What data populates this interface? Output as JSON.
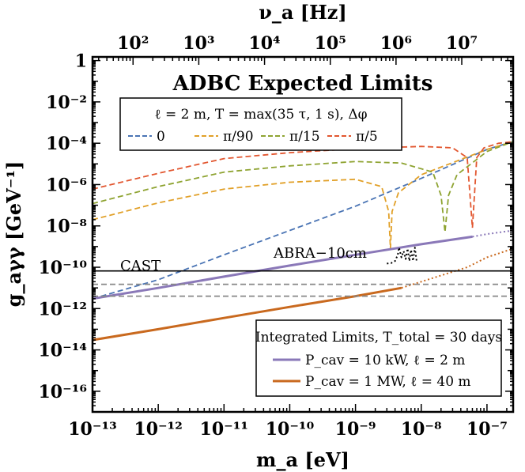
{
  "chart_data": {
    "type": "line",
    "title": "ADBC Expected Limits",
    "xlabel": "m_a [eV]",
    "ylabel": "g_aγγ [GeV⁻¹]",
    "top_xlabel": "ν_a [Hz]",
    "xscale": "log",
    "yscale": "log",
    "xlim": [
      1e-13,
      2.5e-07
    ],
    "ylim": [
      1e-17,
      1.5
    ],
    "x_ticks": [
      {
        "value": 1e-13,
        "label": "10⁻¹³"
      },
      {
        "value": 1e-12,
        "label": "10⁻¹²"
      },
      {
        "value": 1e-11,
        "label": "10⁻¹¹"
      },
      {
        "value": 1e-10,
        "label": "10⁻¹⁰"
      },
      {
        "value": 1e-09,
        "label": "10⁻⁹"
      },
      {
        "value": 1e-08,
        "label": "10⁻⁸"
      },
      {
        "value": 1e-07,
        "label": "10⁻⁷"
      }
    ],
    "y_ticks": [
      {
        "value": 1,
        "label": "1"
      },
      {
        "value": 0.01,
        "label": "10⁻²"
      },
      {
        "value": 0.0001,
        "label": "10⁻⁴"
      },
      {
        "value": 1e-06,
        "label": "10⁻⁶"
      },
      {
        "value": 1e-08,
        "label": "10⁻⁸"
      },
      {
        "value": 1e-10,
        "label": "10⁻¹⁰"
      },
      {
        "value": 1e-12,
        "label": "10⁻¹²"
      },
      {
        "value": 1e-14,
        "label": "10⁻¹⁴"
      },
      {
        "value": 1e-16,
        "label": "10⁻¹⁶"
      }
    ],
    "top_ticks": [
      {
        "value": 100,
        "label": "10²"
      },
      {
        "value": 1000,
        "label": "10³"
      },
      {
        "value": 10000,
        "label": "10⁴"
      },
      {
        "value": 100000,
        "label": "10⁵"
      },
      {
        "value": 1000000,
        "label": "10⁶"
      },
      {
        "value": 10000000,
        "label": "10⁷"
      }
    ],
    "legend_expected": {
      "title": "ℓ = 2 m, T = max(35 τ, 1 s), Δφ",
      "placement": "top-left",
      "entries": [
        {
          "label": "0",
          "color": "#4a74b4"
        },
        {
          "label": "π/90",
          "color": "#e1a028"
        },
        {
          "label": "π/15",
          "color": "#8ea331"
        },
        {
          "label": "π/5",
          "color": "#e2562f"
        }
      ]
    },
    "legend_integrated": {
      "title": "Integrated Limits, T_total = 30 days",
      "placement": "bottom-right",
      "entries": [
        {
          "label": "P_cav = 10 kW, ℓ = 2 m",
          "color": "#8a78b8"
        },
        {
          "label": "P_cav = 1 MW, ℓ = 40 m",
          "color": "#c9691e"
        }
      ]
    },
    "annotations": [
      "CAST",
      "ABRA−10cm"
    ],
    "series": [
      {
        "name": "0",
        "style": "dashed",
        "color": "#4a74b4",
        "x": [
          1e-13,
          1e-12,
          1e-11,
          1e-10,
          1e-09,
          1e-08,
          1e-07,
          2.5e-07
        ],
        "y": [
          3e-12,
          2.5e-11,
          4e-10,
          6e-09,
          9e-08,
          2e-06,
          5e-05,
          0.00012
        ]
      },
      {
        "name": "π/90",
        "style": "dashed",
        "color": "#e1a028",
        "x": [
          1e-13,
          1e-12,
          1e-11,
          1e-10,
          1e-09,
          2.5e-09,
          3.2e-09,
          3.4e-09,
          3.6e-09,
          4.5e-09,
          1e-08,
          1e-07,
          2.5e-07
        ],
        "y": [
          2e-08,
          1.3e-07,
          6e-07,
          1.3e-06,
          1.8e-06,
          8e-07,
          5e-08,
          8e-10,
          5e-08,
          4e-07,
          3e-06,
          5e-05,
          0.00012
        ]
      },
      {
        "name": "π/15",
        "style": "dashed",
        "color": "#8ea331",
        "x": [
          1e-13,
          1e-12,
          1e-11,
          1e-10,
          1e-09,
          5e-09,
          1.5e-08,
          2e-08,
          2.3e-08,
          2.6e-08,
          3.5e-08,
          1e-07,
          2.5e-07
        ],
        "y": [
          1.2e-07,
          8e-07,
          4e-06,
          8e-06,
          1.3e-05,
          1.1e-05,
          4e-06,
          3e-07,
          5e-09,
          3e-07,
          3e-06,
          4e-05,
          0.00012
        ]
      },
      {
        "name": "π/5",
        "style": "dashed",
        "color": "#e2562f",
        "x": [
          1e-13,
          1e-12,
          1e-11,
          1e-10,
          1e-09,
          1e-08,
          3e-08,
          5e-08,
          6e-08,
          7e-08,
          9e-08,
          1.5e-07,
          2.5e-07
        ],
        "y": [
          6e-07,
          3.5e-06,
          1.8e-05,
          3.5e-05,
          5.5e-05,
          7e-05,
          6e-05,
          2e-05,
          8e-09,
          2e-05,
          6e-05,
          0.0001,
          0.00012
        ]
      },
      {
        "name": "P_cav = 10 kW, ℓ = 2 m",
        "style": "solid",
        "color": "#8a78b8",
        "x": [
          1e-13,
          1e-12,
          1e-11,
          1e-10,
          1e-09,
          1e-08,
          6e-08
        ],
        "y": [
          3e-12,
          1e-11,
          3.5e-11,
          1.2e-10,
          4e-10,
          1.3e-09,
          3e-09
        ]
      },
      {
        "name": "P_cav = 10 kW, ℓ = 2 m (extrapolated)",
        "style": "dotted",
        "color": "#8a78b8",
        "x": [
          6e-08,
          1e-07,
          2.5e-07
        ],
        "y": [
          3e-09,
          4e-09,
          6e-09
        ]
      },
      {
        "name": "P_cav = 1 MW, ℓ = 40 m",
        "style": "solid",
        "color": "#c9691e",
        "x": [
          1e-13,
          1e-12,
          1e-11,
          1e-10,
          1e-09,
          5e-09
        ],
        "y": [
          3e-14,
          1e-13,
          3.5e-13,
          1.2e-12,
          4e-12,
          1e-11
        ]
      },
      {
        "name": "P_cav = 1 MW, ℓ = 40 m (extrapolated)",
        "style": "dotted",
        "color": "#c9691e",
        "x": [
          5e-09,
          1e-08,
          5e-08,
          1e-07,
          2.5e-07
        ],
        "y": [
          1e-11,
          2e-11,
          1e-10,
          3e-10,
          8e-10
        ]
      },
      {
        "name": "ABRA−10cm",
        "style": "dotted",
        "color": "#000000",
        "x": [
          3e-09,
          3.5e-09,
          4e-09,
          4.4e-09,
          4.6e-09,
          5e-09,
          5.4e-09,
          5.8e-09,
          6.2e-09,
          6.6e-09,
          7e-09,
          7.5e-09,
          8e-09,
          8.5e-09
        ],
        "y": [
          1.5e-10,
          1.6e-10,
          2e-10,
          4e-10,
          9e-10,
          3e-10,
          6e-10,
          2.5e-10,
          8e-10,
          2e-10,
          7e-10,
          2e-10,
          9e-10,
          2e-10
        ]
      },
      {
        "name": "CAST",
        "style": "solid",
        "color": "#000000",
        "x": [
          1e-13,
          2.5e-07
        ],
        "y": [
          6.6e-11,
          6.6e-11
        ]
      },
      {
        "name": "gray dashed 1",
        "style": "dashed",
        "color": "#888888",
        "x": [
          1e-13,
          2.5e-07
        ],
        "y": [
          1.5e-11,
          1.5e-11
        ]
      },
      {
        "name": "gray dashed 2",
        "style": "dashed",
        "color": "#888888",
        "x": [
          1e-13,
          2.5e-07
        ],
        "y": [
          4e-12,
          4e-12
        ]
      }
    ]
  }
}
